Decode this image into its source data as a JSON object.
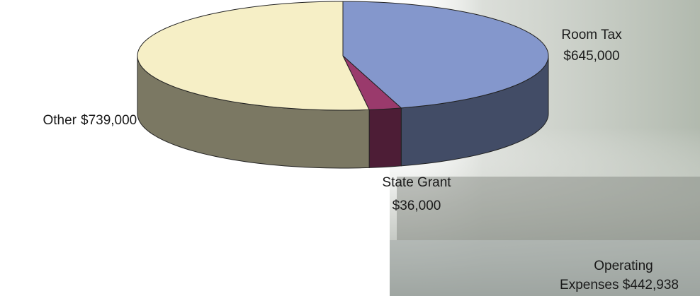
{
  "chart_data": {
    "type": "pie",
    "categories": [
      "Room Tax",
      "State Grant",
      "Other"
    ],
    "values": [
      645000,
      36000,
      739000
    ],
    "value_labels": [
      "$645,000",
      "$36,000",
      "$739,000"
    ],
    "colors": [
      "#8497cc",
      "#9a3a6c",
      "#f6efc6"
    ],
    "annotation": [
      "Operating",
      "Expenses $442,938"
    ]
  }
}
